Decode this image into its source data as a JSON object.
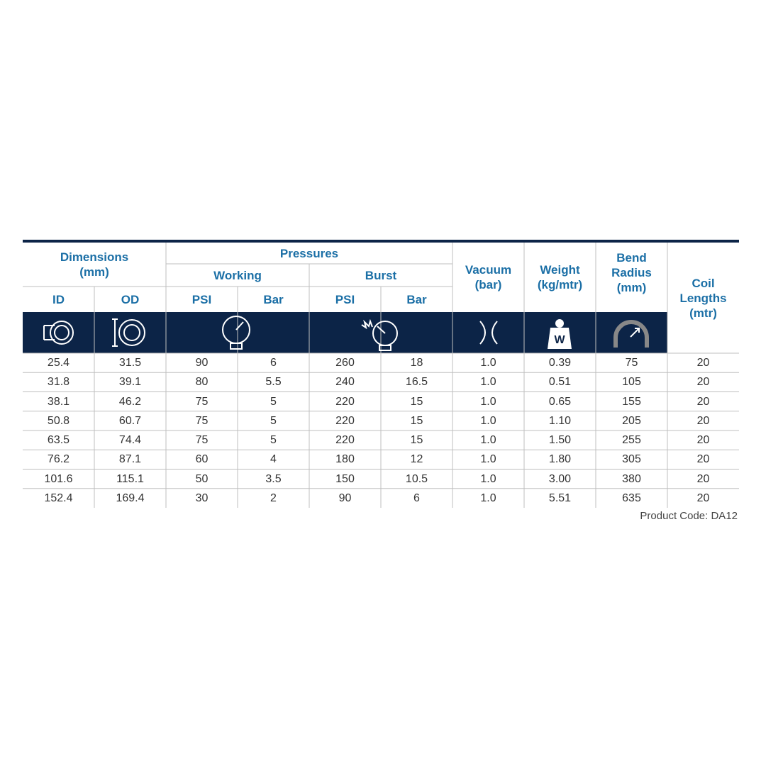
{
  "header": {
    "dimensions": [
      "Dimensions",
      "(mm)"
    ],
    "pressures": "Pressures",
    "working": "Working",
    "burst": "Burst",
    "vacuum": [
      "Vacuum",
      "(bar)"
    ],
    "weight": [
      "Weight",
      "(kg/mtr)"
    ],
    "bend_radius": [
      "Bend",
      "Radius",
      "(mm)"
    ],
    "coil_lengths": [
      "Coil",
      "Lengths",
      "(mtr)"
    ],
    "columns": [
      "ID",
      "OD",
      "PSI",
      "Bar",
      "PSI",
      "Bar"
    ]
  },
  "table": {
    "rows": [
      [
        "25.4",
        "31.5",
        "90",
        "6",
        "260",
        "18",
        "1.0",
        "0.39",
        "75",
        "20"
      ],
      [
        "31.8",
        "39.1",
        "80",
        "5.5",
        "240",
        "16.5",
        "1.0",
        "0.51",
        "105",
        "20"
      ],
      [
        "38.1",
        "46.2",
        "75",
        "5",
        "220",
        "15",
        "1.0",
        "0.65",
        "155",
        "20"
      ],
      [
        "50.8",
        "60.7",
        "75",
        "5",
        "220",
        "15",
        "1.0",
        "1.10",
        "205",
        "20"
      ],
      [
        "63.5",
        "74.4",
        "75",
        "5",
        "220",
        "15",
        "1.0",
        "1.50",
        "255",
        "20"
      ],
      [
        "76.2",
        "87.1",
        "60",
        "4",
        "180",
        "12",
        "1.0",
        "1.80",
        "305",
        "20"
      ],
      [
        "101.6",
        "115.1",
        "50",
        "3.5",
        "150",
        "10.5",
        "1.0",
        "3.00",
        "380",
        "20"
      ],
      [
        "152.4",
        "169.4",
        "30",
        "2",
        "90",
        "6",
        "1.0",
        "5.51",
        "635",
        "20"
      ]
    ]
  },
  "footer": {
    "product_code": "Product Code: DA12"
  }
}
